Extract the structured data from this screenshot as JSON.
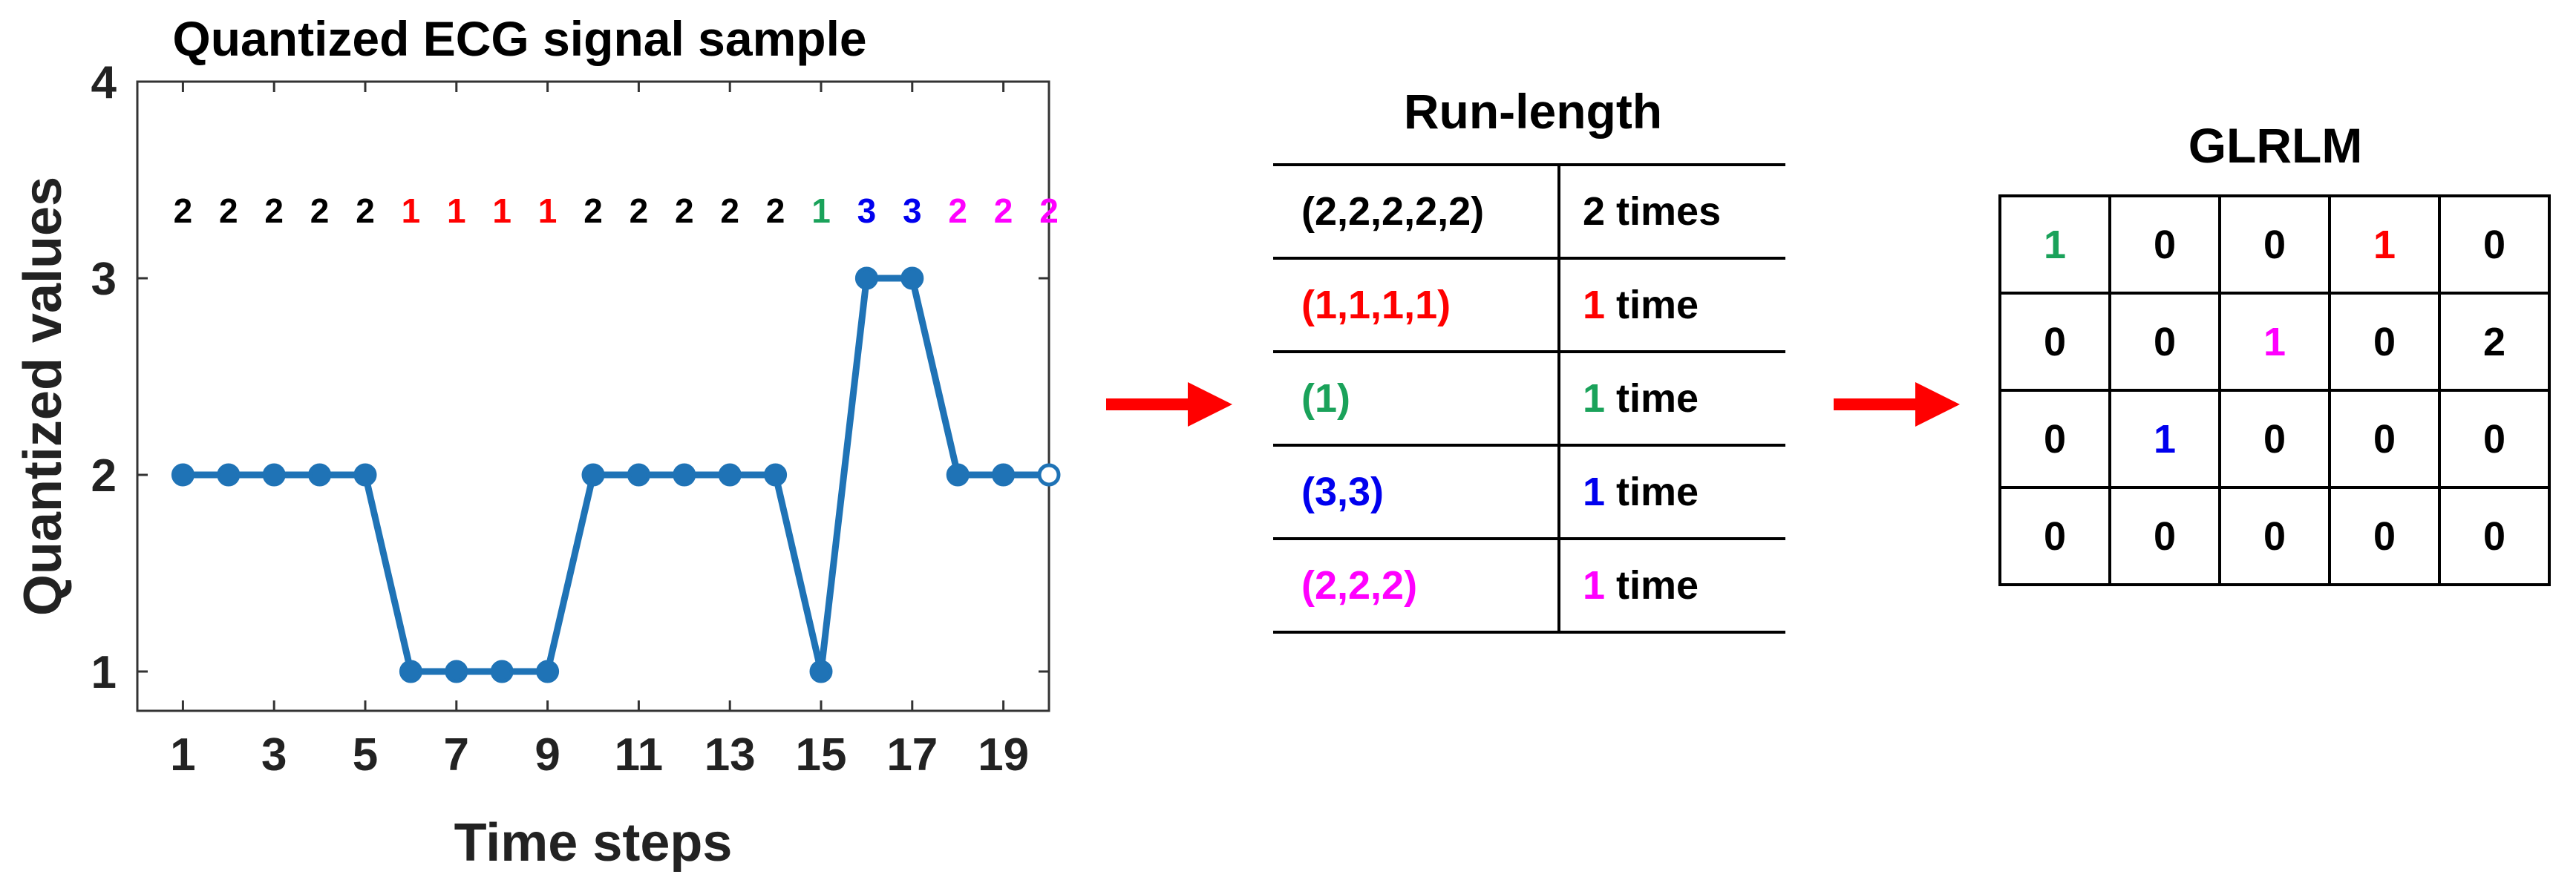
{
  "colors": {
    "line": "#1f73b6",
    "black": "#000000",
    "red": "#ff0000",
    "green": "#1aa25a",
    "blue": "#0000ee",
    "magenta": "#ff00ff",
    "arrow": "#ff0000"
  },
  "chart_data": {
    "type": "line",
    "title": "Quantized ECG signal sample",
    "xlabel": "Time steps",
    "ylabel": "Quantized values",
    "x": [
      1,
      2,
      3,
      4,
      5,
      6,
      7,
      8,
      9,
      10,
      11,
      12,
      13,
      14,
      15,
      16,
      17,
      18,
      19,
      20
    ],
    "values": [
      2,
      2,
      2,
      2,
      2,
      1,
      1,
      1,
      1,
      2,
      2,
      2,
      2,
      2,
      1,
      3,
      3,
      2,
      2,
      2
    ],
    "xlim": [
      0,
      20
    ],
    "ylim": [
      0.8,
      4
    ],
    "xticks": [
      "1",
      "3",
      "5",
      "7",
      "9",
      "11",
      "13",
      "15",
      "17",
      "19"
    ],
    "xtick_values": [
      1,
      3,
      5,
      7,
      9,
      11,
      13,
      15,
      17,
      19
    ],
    "yticks": [
      "1",
      "2",
      "3",
      "4"
    ],
    "ytick_values": [
      1,
      2,
      3,
      4
    ],
    "annotations": [
      {
        "text": "2",
        "color": "black"
      },
      {
        "text": "2",
        "color": "black"
      },
      {
        "text": "2",
        "color": "black"
      },
      {
        "text": "2",
        "color": "black"
      },
      {
        "text": "2",
        "color": "black"
      },
      {
        "text": "1",
        "color": "red"
      },
      {
        "text": "1",
        "color": "red"
      },
      {
        "text": "1",
        "color": "red"
      },
      {
        "text": "1",
        "color": "red"
      },
      {
        "text": "2",
        "color": "black"
      },
      {
        "text": "2",
        "color": "black"
      },
      {
        "text": "2",
        "color": "black"
      },
      {
        "text": "2",
        "color": "black"
      },
      {
        "text": "2",
        "color": "black"
      },
      {
        "text": "1",
        "color": "green"
      },
      {
        "text": "3",
        "color": "blue"
      },
      {
        "text": "3",
        "color": "blue"
      },
      {
        "text": "2",
        "color": "magenta"
      },
      {
        "text": "2",
        "color": "magenta"
      },
      {
        "text": "2",
        "color": "magenta"
      }
    ]
  },
  "run_length": {
    "title": "Run-length",
    "rows": [
      {
        "seq": "(2,2,2,2,2)",
        "seq_color": "black",
        "count": "2",
        "count_color": "black",
        "unit": " times"
      },
      {
        "seq": "(1,1,1,1)",
        "seq_color": "red",
        "count": "1",
        "count_color": "red",
        "unit": " time"
      },
      {
        "seq": "(1)",
        "seq_color": "green",
        "count": "1",
        "count_color": "green",
        "unit": " time"
      },
      {
        "seq": "(3,3)",
        "seq_color": "blue",
        "count": "1",
        "count_color": "blue",
        "unit": " time"
      },
      {
        "seq": "(2,2,2)",
        "seq_color": "magenta",
        "count": "1",
        "count_color": "magenta",
        "unit": " time"
      }
    ]
  },
  "glrlm": {
    "title": "GLRLM",
    "rows": [
      [
        {
          "v": "1",
          "c": "green"
        },
        {
          "v": "0",
          "c": "black"
        },
        {
          "v": "0",
          "c": "black"
        },
        {
          "v": "1",
          "c": "red"
        },
        {
          "v": "0",
          "c": "black"
        }
      ],
      [
        {
          "v": "0",
          "c": "black"
        },
        {
          "v": "0",
          "c": "black"
        },
        {
          "v": "1",
          "c": "magenta"
        },
        {
          "v": "0",
          "c": "black"
        },
        {
          "v": "2",
          "c": "black"
        }
      ],
      [
        {
          "v": "0",
          "c": "black"
        },
        {
          "v": "1",
          "c": "blue"
        },
        {
          "v": "0",
          "c": "black"
        },
        {
          "v": "0",
          "c": "black"
        },
        {
          "v": "0",
          "c": "black"
        }
      ],
      [
        {
          "v": "0",
          "c": "black"
        },
        {
          "v": "0",
          "c": "black"
        },
        {
          "v": "0",
          "c": "black"
        },
        {
          "v": "0",
          "c": "black"
        },
        {
          "v": "0",
          "c": "black"
        }
      ]
    ]
  }
}
